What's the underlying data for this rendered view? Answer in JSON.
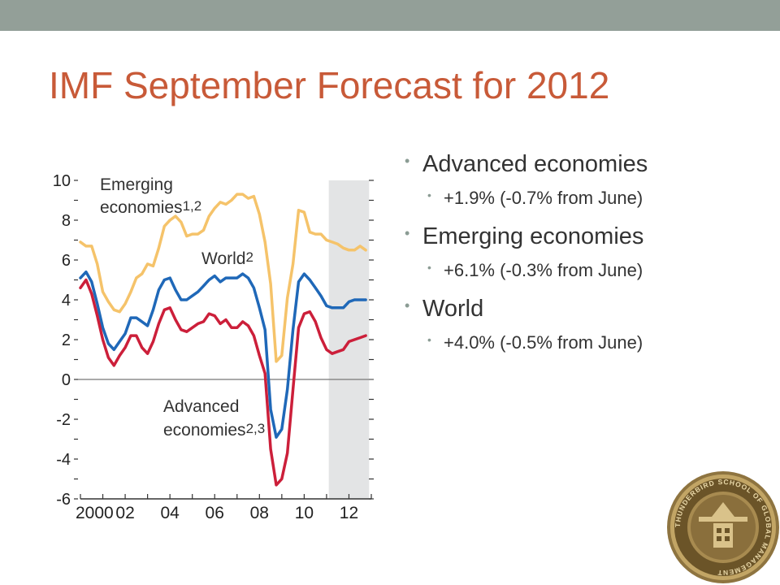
{
  "slide": {
    "title": "IMF September Forecast for 2012",
    "accent_color": "#c85a38",
    "top_bar_color": "#939f98"
  },
  "bullets": {
    "advanced": {
      "label": "Advanced economies",
      "detail": "+1.9% (-0.7% from June)"
    },
    "emerging": {
      "label": "Emerging economies",
      "detail": "+6.1% (-0.3% from June)"
    },
    "world": {
      "label": "World",
      "detail": "+4.0% (-0.5% from June)"
    }
  },
  "logo": {
    "text": "THUNDERBIRD SCHOOL OF GLOBAL MANAGEMENT",
    "icon": "thunderbird-seal-icon"
  },
  "chart_data": {
    "type": "line",
    "xlim": [
      2000,
      2013
    ],
    "ylim": [
      -6,
      10
    ],
    "y_ticks": [
      10,
      8,
      6,
      4,
      2,
      0,
      -2,
      -4,
      -6
    ],
    "x_ticks": [
      {
        "value": 2000,
        "label": "2000"
      },
      {
        "value": 2002,
        "label": "02"
      },
      {
        "value": 2004,
        "label": "04"
      },
      {
        "value": 2006,
        "label": "06"
      },
      {
        "value": 2008,
        "label": "08"
      },
      {
        "value": 2010,
        "label": "10"
      },
      {
        "value": 2012,
        "label": "12"
      }
    ],
    "forecast_shade": [
      2011.1,
      2012.9
    ],
    "zero_line": true,
    "series": [
      {
        "name": "Emerging economies",
        "label_lines": [
          "Emerging",
          "economies"
        ],
        "label_sup": "1,2",
        "color": "#f5c36a",
        "points": [
          [
            2000,
            6.9
          ],
          [
            2000.25,
            6.7
          ],
          [
            2000.5,
            6.7
          ],
          [
            2000.75,
            5.8
          ],
          [
            2001,
            4.4
          ],
          [
            2001.25,
            3.9
          ],
          [
            2001.5,
            3.5
          ],
          [
            2001.75,
            3.4
          ],
          [
            2002,
            3.8
          ],
          [
            2002.25,
            4.4
          ],
          [
            2002.5,
            5.1
          ],
          [
            2002.75,
            5.3
          ],
          [
            2003,
            5.8
          ],
          [
            2003.25,
            5.7
          ],
          [
            2003.5,
            6.6
          ],
          [
            2003.75,
            7.7
          ],
          [
            2004,
            8.0
          ],
          [
            2004.25,
            8.2
          ],
          [
            2004.5,
            7.9
          ],
          [
            2004.75,
            7.2
          ],
          [
            2005,
            7.3
          ],
          [
            2005.25,
            7.3
          ],
          [
            2005.5,
            7.5
          ],
          [
            2005.75,
            8.2
          ],
          [
            2006,
            8.6
          ],
          [
            2006.25,
            8.9
          ],
          [
            2006.5,
            8.8
          ],
          [
            2006.75,
            9.0
          ],
          [
            2007,
            9.3
          ],
          [
            2007.25,
            9.3
          ],
          [
            2007.5,
            9.1
          ],
          [
            2007.75,
            9.2
          ],
          [
            2008,
            8.3
          ],
          [
            2008.25,
            6.9
          ],
          [
            2008.5,
            4.8
          ],
          [
            2008.75,
            0.9
          ],
          [
            2009,
            1.2
          ],
          [
            2009.25,
            4.1
          ],
          [
            2009.5,
            5.8
          ],
          [
            2009.75,
            8.5
          ],
          [
            2010,
            8.4
          ],
          [
            2010.25,
            7.4
          ],
          [
            2010.5,
            7.3
          ],
          [
            2010.75,
            7.3
          ],
          [
            2011,
            7.0
          ],
          [
            2011.25,
            6.9
          ],
          [
            2011.5,
            6.8
          ],
          [
            2011.75,
            6.6
          ],
          [
            2012,
            6.5
          ],
          [
            2012.25,
            6.5
          ],
          [
            2012.5,
            6.7
          ],
          [
            2012.75,
            6.5
          ]
        ]
      },
      {
        "name": "World",
        "label_lines": [
          "World"
        ],
        "label_sup": "2",
        "color": "#1f68b8",
        "points": [
          [
            2000,
            5.1
          ],
          [
            2000.25,
            5.4
          ],
          [
            2000.5,
            4.9
          ],
          [
            2000.75,
            3.8
          ],
          [
            2001,
            2.6
          ],
          [
            2001.25,
            1.8
          ],
          [
            2001.5,
            1.5
          ],
          [
            2001.75,
            1.9
          ],
          [
            2002,
            2.3
          ],
          [
            2002.25,
            3.1
          ],
          [
            2002.5,
            3.1
          ],
          [
            2002.75,
            2.9
          ],
          [
            2003,
            2.7
          ],
          [
            2003.25,
            3.5
          ],
          [
            2003.5,
            4.5
          ],
          [
            2003.75,
            5.0
          ],
          [
            2004,
            5.1
          ],
          [
            2004.25,
            4.5
          ],
          [
            2004.5,
            4.0
          ],
          [
            2004.75,
            4.0
          ],
          [
            2005,
            4.2
          ],
          [
            2005.25,
            4.4
          ],
          [
            2005.5,
            4.7
          ],
          [
            2005.75,
            5.0
          ],
          [
            2006,
            5.2
          ],
          [
            2006.25,
            4.9
          ],
          [
            2006.5,
            5.1
          ],
          [
            2006.75,
            5.1
          ],
          [
            2007,
            5.1
          ],
          [
            2007.25,
            5.3
          ],
          [
            2007.5,
            5.1
          ],
          [
            2007.75,
            4.6
          ],
          [
            2008,
            3.6
          ],
          [
            2008.25,
            2.5
          ],
          [
            2008.5,
            -1.5
          ],
          [
            2008.75,
            -2.9
          ],
          [
            2009,
            -2.5
          ],
          [
            2009.25,
            -0.5
          ],
          [
            2009.5,
            2.5
          ],
          [
            2009.75,
            4.9
          ],
          [
            2010,
            5.3
          ],
          [
            2010.25,
            5.0
          ],
          [
            2010.5,
            4.6
          ],
          [
            2010.75,
            4.2
          ],
          [
            2011,
            3.7
          ],
          [
            2011.25,
            3.6
          ],
          [
            2011.5,
            3.6
          ],
          [
            2011.75,
            3.6
          ],
          [
            2012,
            3.9
          ],
          [
            2012.25,
            4.0
          ],
          [
            2012.5,
            4.0
          ],
          [
            2012.75,
            4.0
          ]
        ]
      },
      {
        "name": "Advanced economies",
        "label_lines": [
          "Advanced",
          "economies"
        ],
        "label_sup": "2,3",
        "color": "#cc1f3a",
        "points": [
          [
            2000,
            4.6
          ],
          [
            2000.25,
            5.0
          ],
          [
            2000.5,
            4.3
          ],
          [
            2000.75,
            3.2
          ],
          [
            2001,
            2.0
          ],
          [
            2001.25,
            1.1
          ],
          [
            2001.5,
            0.7
          ],
          [
            2001.75,
            1.2
          ],
          [
            2002,
            1.6
          ],
          [
            2002.25,
            2.2
          ],
          [
            2002.5,
            2.2
          ],
          [
            2002.75,
            1.6
          ],
          [
            2003,
            1.3
          ],
          [
            2003.25,
            1.9
          ],
          [
            2003.5,
            2.8
          ],
          [
            2003.75,
            3.5
          ],
          [
            2004,
            3.6
          ],
          [
            2004.25,
            3.0
          ],
          [
            2004.5,
            2.5
          ],
          [
            2004.75,
            2.4
          ],
          [
            2005,
            2.6
          ],
          [
            2005.25,
            2.8
          ],
          [
            2005.5,
            2.9
          ],
          [
            2005.75,
            3.3
          ],
          [
            2006,
            3.2
          ],
          [
            2006.25,
            2.8
          ],
          [
            2006.5,
            3.0
          ],
          [
            2006.75,
            2.6
          ],
          [
            2007,
            2.6
          ],
          [
            2007.25,
            2.9
          ],
          [
            2007.5,
            2.7
          ],
          [
            2007.75,
            2.2
          ],
          [
            2008,
            1.2
          ],
          [
            2008.25,
            0.3
          ],
          [
            2008.5,
            -3.5
          ],
          [
            2008.75,
            -5.3
          ],
          [
            2009,
            -5.0
          ],
          [
            2009.25,
            -3.7
          ],
          [
            2009.5,
            -0.5
          ],
          [
            2009.75,
            2.6
          ],
          [
            2010,
            3.3
          ],
          [
            2010.25,
            3.4
          ],
          [
            2010.5,
            2.9
          ],
          [
            2010.75,
            2.1
          ],
          [
            2011,
            1.5
          ],
          [
            2011.25,
            1.3
          ],
          [
            2011.5,
            1.4
          ],
          [
            2011.75,
            1.5
          ],
          [
            2012,
            1.9
          ],
          [
            2012.25,
            2.0
          ],
          [
            2012.5,
            2.1
          ],
          [
            2012.75,
            2.2
          ]
        ]
      }
    ]
  }
}
